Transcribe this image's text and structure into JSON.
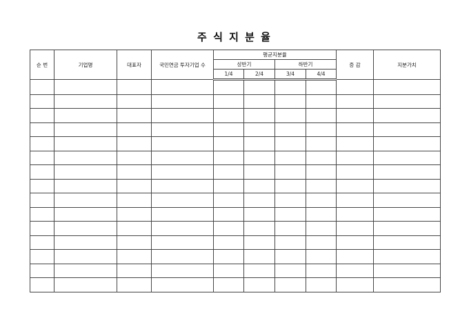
{
  "title": "주 식 지 분 율",
  "headers": {
    "no": "순  번",
    "company": "기업명",
    "ceo": "대표자",
    "nps_count": "국민연금 투자기업 수",
    "avg_share": "평균지분율",
    "h1": "상반기",
    "h2": "하반기",
    "q1": "1/4",
    "q2": "2/4",
    "q3": "3/4",
    "q4": "4/4",
    "change": "증  감",
    "value": "지분가치"
  },
  "row_count": 15
}
